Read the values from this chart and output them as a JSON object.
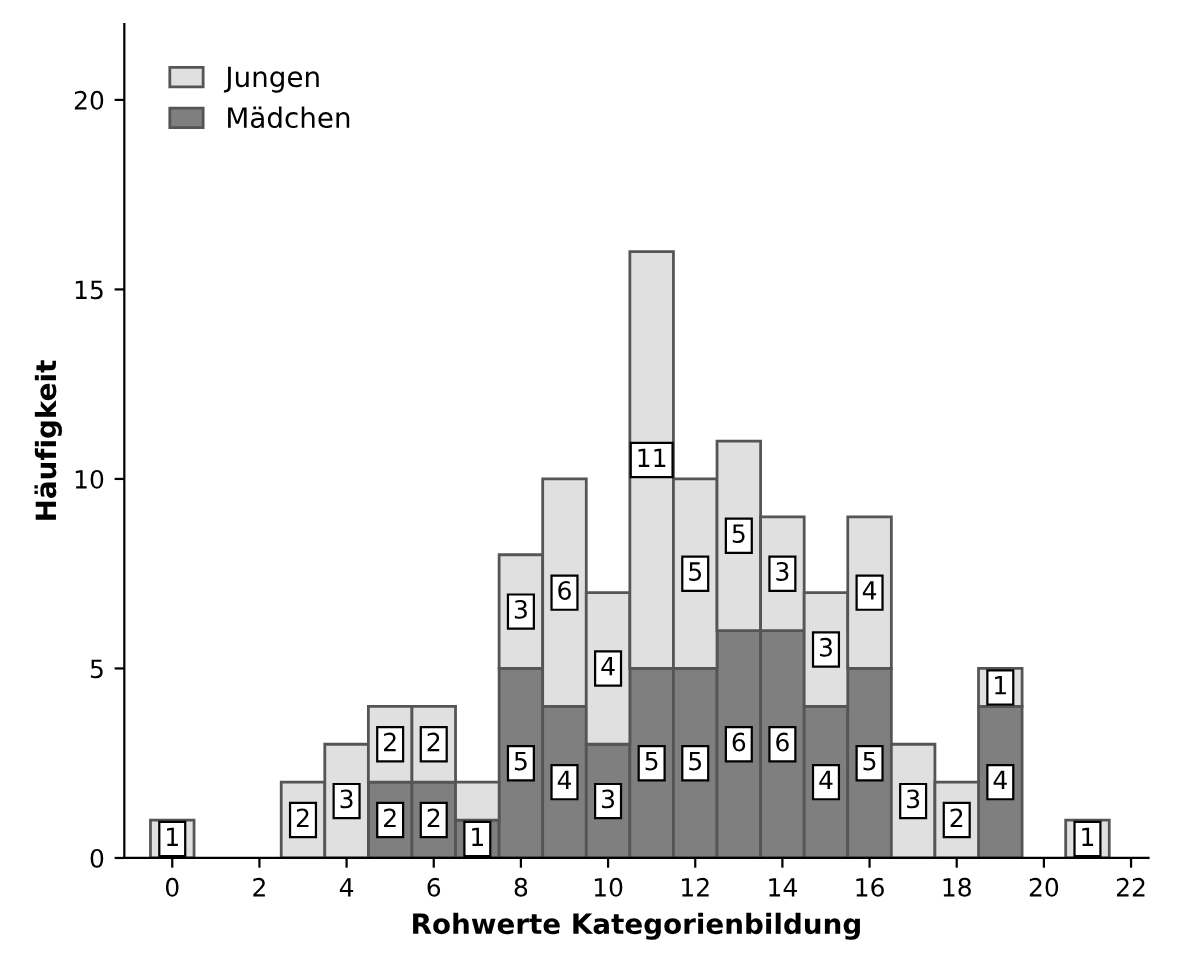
{
  "chart_data": {
    "type": "bar",
    "stacked": true,
    "xlabel": "Rohwerte Kategorienbildung",
    "ylabel": "Häufigkeit",
    "x": [
      0,
      1,
      2,
      3,
      4,
      5,
      6,
      7,
      8,
      9,
      10,
      11,
      12,
      13,
      14,
      15,
      16,
      17,
      18,
      19,
      20,
      21
    ],
    "xlim": [
      -1.1,
      22.4
    ],
    "xticks": [
      0,
      2,
      4,
      6,
      8,
      10,
      12,
      14,
      16,
      18,
      20,
      22
    ],
    "ylim": [
      0,
      22
    ],
    "yticks": [
      0,
      5,
      10,
      15,
      20
    ],
    "series": [
      {
        "name": "Mädchen",
        "color": "#7f7f7f",
        "values": [
          0,
          0,
          0,
          0,
          0,
          2,
          2,
          1,
          5,
          4,
          3,
          5,
          5,
          6,
          6,
          4,
          5,
          0,
          0,
          4,
          0,
          0
        ],
        "value_labels": [
          null,
          null,
          null,
          null,
          null,
          "2",
          "2",
          "1",
          "5",
          "4",
          "3",
          "5",
          "5",
          "6",
          "6",
          "4",
          "5",
          null,
          null,
          "4",
          null,
          null
        ]
      },
      {
        "name": "Jungen",
        "color": "#e0e0e0",
        "values": [
          1,
          0,
          0,
          2,
          3,
          2,
          2,
          1,
          3,
          6,
          4,
          11,
          5,
          5,
          3,
          3,
          4,
          3,
          2,
          1,
          0,
          1
        ],
        "value_labels": [
          "1",
          null,
          null,
          "2",
          "3",
          "2",
          "2",
          null,
          "3",
          "6",
          "4",
          "11",
          "5",
          "5",
          "3",
          "3",
          "4",
          "3",
          "2",
          "1",
          null,
          "1"
        ]
      }
    ],
    "legend": "top left",
    "grid": false
  }
}
